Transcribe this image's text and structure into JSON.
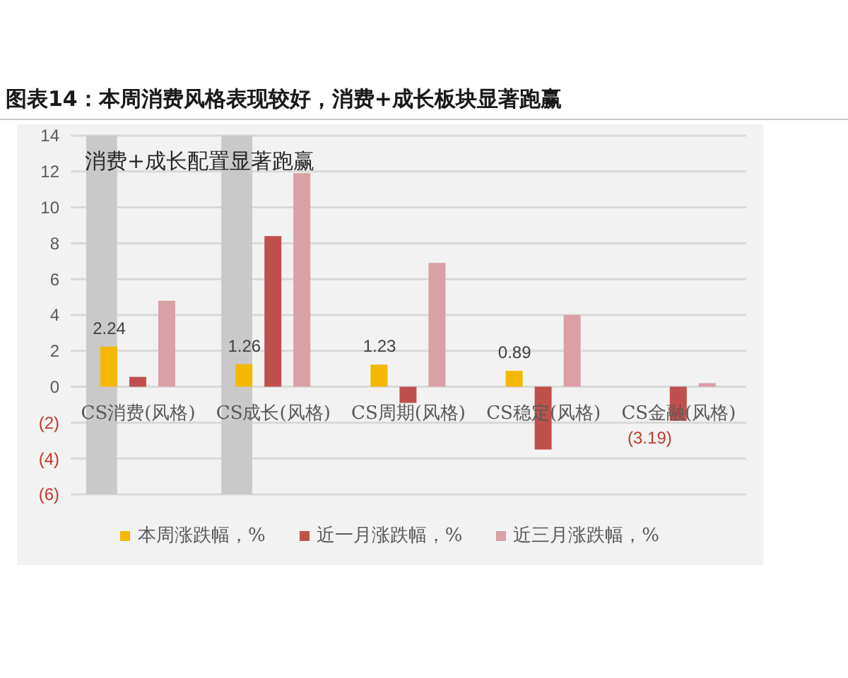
{
  "chart_data": {
    "type": "bar",
    "title": "图表14：本周消费风格表现较好，消费+成长板块显著跑赢",
    "annotations": [
      "消费+成长配置显著跑赢"
    ],
    "categories": [
      "CS消费(风格)",
      "CS成长(风格)",
      "CS周期(风格)",
      "CS稳定(风格)",
      "CS金融(风格)"
    ],
    "series": [
      {
        "name": "本周涨跌幅，%",
        "color": "#f5b800",
        "values": [
          2.24,
          1.26,
          1.23,
          0.89,
          null
        ],
        "value_labels": [
          "2.24",
          "1.26",
          "1.23",
          "0.89",
          "(3.19)"
        ]
      },
      {
        "name": "近一月涨跌幅，%",
        "color": "#c0504d",
        "values": [
          0.55,
          8.4,
          -0.9,
          -3.5,
          -1.9
        ]
      },
      {
        "name": "近三月涨跌幅，%",
        "color": "#d9a0a6",
        "values": [
          4.8,
          11.9,
          6.9,
          4.0,
          0.2
        ]
      }
    ],
    "ylim": [
      -6,
      14
    ],
    "yticks": [
      {
        "value": -6,
        "label": "(6)"
      },
      {
        "value": -4,
        "label": "(4)"
      },
      {
        "value": -2,
        "label": "(2)"
      },
      0,
      2,
      4,
      6,
      8,
      10,
      12,
      14
    ],
    "grid": "y",
    "legend": "bottom",
    "bands": [
      {
        "axis": "x",
        "from": "CS消费(风格)",
        "to": "CS消费(风格)",
        "color": "#c9c9c9"
      },
      {
        "axis": "x",
        "from": "CS成长(风格)",
        "to": "CS成长(风格)",
        "color": "#c9c9c9"
      }
    ]
  }
}
